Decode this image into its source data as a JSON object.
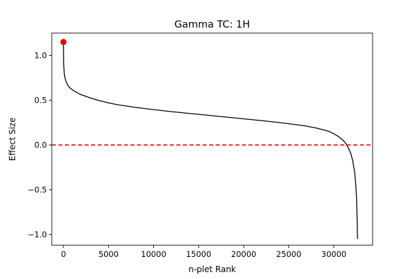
{
  "chart_data": {
    "type": "line",
    "title": "Gamma TC: 1H",
    "xlabel": "n-plet Rank",
    "ylabel": "Effect Size",
    "xlim": [
      -1300,
      34300
    ],
    "ylim": [
      -1.12,
      1.25
    ],
    "xticks": [
      0,
      5000,
      10000,
      15000,
      20000,
      25000,
      30000
    ],
    "xtick_labels": [
      "0",
      "5000",
      "10000",
      "15000",
      "20000",
      "25000",
      "30000"
    ],
    "yticks": [
      -1.0,
      -0.5,
      0.0,
      0.5,
      1.0
    ],
    "ytick_labels": [
      "−1.0",
      "−0.5",
      "0.0",
      "0.5",
      "1.0"
    ],
    "grid": false,
    "series": [
      {
        "color": "#000000",
        "x": [
          0,
          10,
          30,
          60,
          100,
          150,
          200,
          300,
          400,
          500,
          700,
          1000,
          1500,
          2000,
          3000,
          4000,
          5000,
          6000,
          8000,
          10000,
          12000,
          15000,
          18000,
          20000,
          22000,
          24000,
          26000,
          27000,
          28000,
          29000,
          29500,
          30000,
          30500,
          31000,
          31300,
          31600,
          31900,
          32100,
          32300,
          32400,
          32500,
          32550,
          32600,
          32620
        ],
        "y": [
          1.15,
          1.0,
          0.9,
          0.84,
          0.79,
          0.76,
          0.735,
          0.705,
          0.685,
          0.665,
          0.64,
          0.615,
          0.585,
          0.56,
          0.525,
          0.495,
          0.47,
          0.45,
          0.42,
          0.395,
          0.372,
          0.342,
          0.312,
          0.292,
          0.272,
          0.25,
          0.225,
          0.21,
          0.19,
          0.165,
          0.15,
          0.125,
          0.095,
          0.055,
          0.02,
          -0.03,
          -0.1,
          -0.18,
          -0.3,
          -0.4,
          -0.55,
          -0.7,
          -0.9,
          -1.05
        ]
      }
    ],
    "highlight_point": {
      "x": 0,
      "y": 1.15,
      "color": "#e00000"
    },
    "reference_line": {
      "y": 0.0,
      "color": "#e00000",
      "style": "dashed"
    }
  }
}
